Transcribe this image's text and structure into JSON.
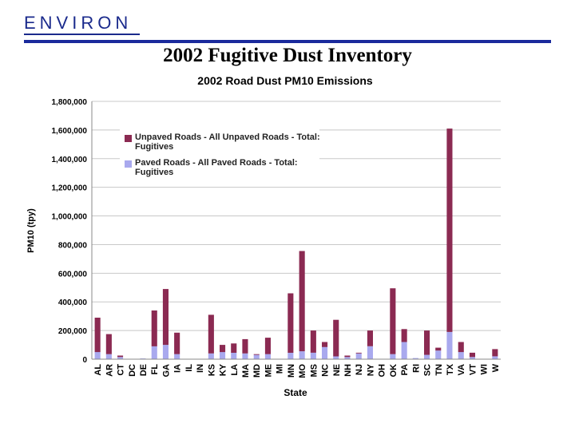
{
  "header": {
    "logo_text": "ENVIRON",
    "slide_title": "2002 Fugitive Dust Inventory"
  },
  "colors": {
    "brand": "#1a2a8c",
    "unpaved": "#8b2a52",
    "paved": "#a9a9ee",
    "grid": "#c8c8c8"
  },
  "chart_data": {
    "type": "bar",
    "stacked": true,
    "title": "2002 Road Dust PM10 Emissions",
    "xlabel": "State",
    "ylabel": "PM10 (tpy)",
    "ylim": [
      0,
      1800000
    ],
    "yticks": [
      "0",
      "200,000",
      "400,000",
      "600,000",
      "800,000",
      "1,000,000",
      "1,200,000",
      "1,400,000",
      "1,600,000",
      "1,800,000"
    ],
    "grid": true,
    "legend_position": "top-left",
    "categories": [
      "AL",
      "AR",
      "CT",
      "DC",
      "DE",
      "FL",
      "GA",
      "IA",
      "IL",
      "IN",
      "KS",
      "KY",
      "LA",
      "MA",
      "MD",
      "ME",
      "MI",
      "MN",
      "MO",
      "MS",
      "NC",
      "NE",
      "NH",
      "NJ",
      "NY",
      "OH",
      "OK",
      "PA",
      "RI",
      "SC",
      "TN",
      "TX",
      "VA",
      "VT",
      "WI",
      "W"
    ],
    "series": [
      {
        "name": "Paved Roads - All Paved Roads - Total: Fugitives",
        "values": [
          50000,
          35000,
          15000,
          0,
          5000,
          90000,
          100000,
          35000,
          0,
          0,
          40000,
          50000,
          45000,
          40000,
          30000,
          35000,
          0,
          45000,
          55000,
          45000,
          85000,
          20000,
          15000,
          40000,
          90000,
          0,
          35000,
          120000,
          8000,
          30000,
          60000,
          190000,
          50000,
          15000,
          0,
          20000
        ]
      },
      {
        "name": "Unpaved Roads - All Unpaved Roads - Total: Fugitives",
        "values": [
          240000,
          140000,
          10000,
          0,
          0,
          250000,
          390000,
          150000,
          0,
          0,
          270000,
          50000,
          65000,
          100000,
          5000,
          115000,
          0,
          415000,
          700000,
          155000,
          35000,
          255000,
          10000,
          5000,
          110000,
          0,
          460000,
          90000,
          0,
          170000,
          20000,
          1420000,
          70000,
          30000,
          0,
          50000
        ]
      }
    ]
  }
}
